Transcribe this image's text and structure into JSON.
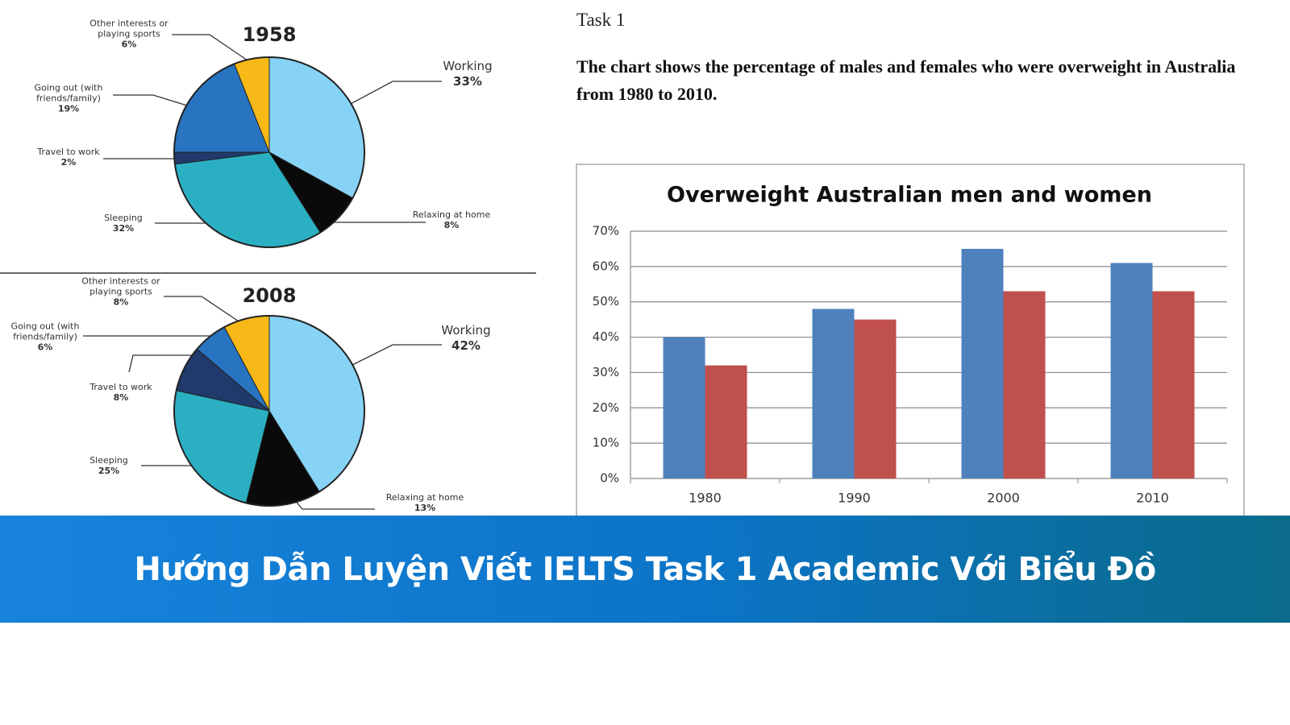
{
  "task_label": "Task 1",
  "task_text": "The chart shows the percentage of males and females who were overweight in Australia from 1980 to 2010.",
  "banner_title": "Hướng Dẫn Luyện Viết IELTS Task 1 Academic Với Biểu Đồ",
  "chart_data": [
    {
      "type": "pie",
      "title": "1958",
      "categories": [
        "Working",
        "Relaxing at home",
        "Sleeping",
        "Travel to work",
        "Going out (with friends/family)",
        "Other interests or playing sports"
      ],
      "values": [
        33,
        8,
        32,
        2,
        19,
        6
      ],
      "value_labels": [
        "33%",
        "8%",
        "32%",
        "2%",
        "19%",
        "6%"
      ],
      "colors": [
        "#87d3f5",
        "#0a0a0a",
        "#2ab0c2",
        "#1f3a6b",
        "#2874c0",
        "#f7b918"
      ]
    },
    {
      "type": "pie",
      "title": "2008",
      "categories": [
        "Working",
        "Relaxing at home",
        "Sleeping",
        "Travel to work",
        "Going out (with friends/family)",
        "Other interests or playing sports"
      ],
      "values": [
        42,
        13,
        25,
        8,
        6,
        8
      ],
      "value_labels": [
        "42%",
        "13%",
        "25%",
        "8%",
        "6%",
        "8%"
      ],
      "colors": [
        "#87d3f5",
        "#0a0a0a",
        "#2ab0c2",
        "#1f3a6b",
        "#2874c0",
        "#f7b918"
      ]
    },
    {
      "type": "bar",
      "title": "Overweight Australian men and women",
      "categories": [
        "1980",
        "1990",
        "2000",
        "2010"
      ],
      "series": [
        {
          "color": "#4f81bd",
          "values": [
            40,
            48,
            65,
            61
          ]
        },
        {
          "color": "#c0504d",
          "values": [
            32,
            45,
            53,
            53
          ]
        }
      ],
      "ylim": [
        0,
        70
      ],
      "yticks": [
        {
          "value": 0,
          "label": "0%"
        },
        {
          "value": 10,
          "label": "10%"
        },
        {
          "value": 20,
          "label": "20%"
        },
        {
          "value": 30,
          "label": "30%"
        },
        {
          "value": 40,
          "label": "40%"
        },
        {
          "value": 50,
          "label": "50%"
        },
        {
          "value": 60,
          "label": "60%"
        },
        {
          "value": 70,
          "label": "70%"
        }
      ],
      "grid": true
    }
  ]
}
